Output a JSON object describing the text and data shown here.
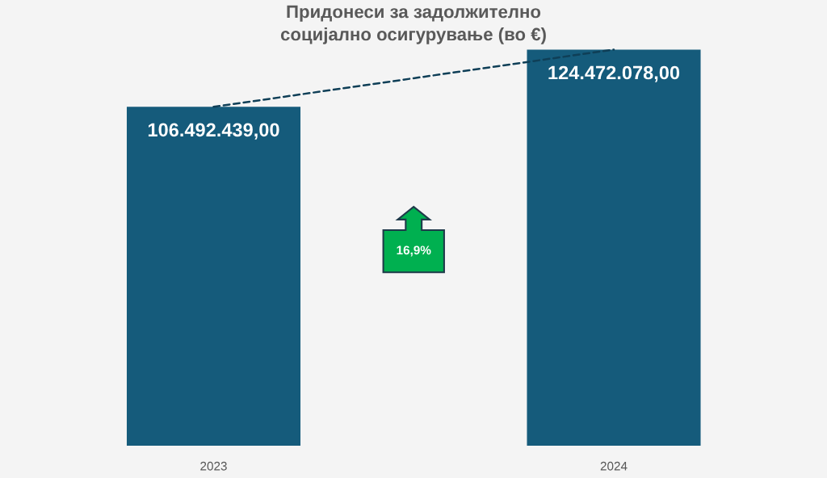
{
  "chart_data": {
    "type": "bar",
    "title": "Придонеси за задолжително\nсоцијално осигурување (во €)",
    "categories": [
      "2023",
      "2024"
    ],
    "series": [
      {
        "color": "#155b7b",
        "values": [
          106492439.0,
          124472078.0
        ],
        "value_labels": [
          "106.492.439,00",
          "124.472.078,00"
        ]
      },
      {
        "type": "line",
        "color": "#0f3f57",
        "values": [
          106492439.0,
          124472078.0
        ],
        "line_style": "dashed",
        "marker": "none"
      }
    ],
    "tick_labels": "x",
    "annotations": [
      "16,9%"
    ],
    "grid": false
  }
}
